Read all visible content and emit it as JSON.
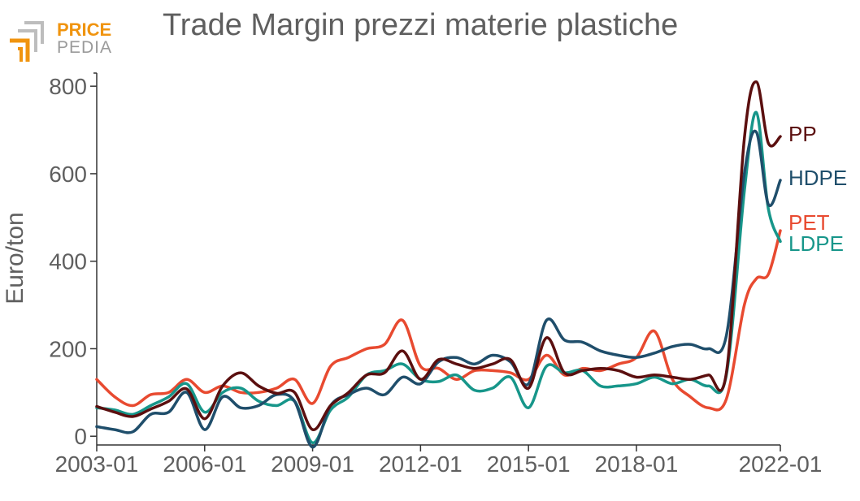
{
  "logo": {
    "text_top": "PRICE",
    "text_bottom": "PEDIA",
    "color_top": "#f0940f",
    "color_bottom": "#9a9a9a"
  },
  "chart_data": {
    "type": "line",
    "title": "Trade Margin prezzi materie plastiche",
    "xlabel": "",
    "ylabel": "Euro/ton",
    "xlim": [
      "2003-01",
      "2022-01"
    ],
    "ylim": [
      -20,
      830
    ],
    "x_ticks": [
      "2003-01",
      "2006-01",
      "2009-01",
      "2012-01",
      "2015-01",
      "2018-01",
      "2022-01"
    ],
    "y_ticks": [
      0,
      200,
      400,
      600,
      800
    ],
    "grid": false,
    "legend": "labels at line ends (right)",
    "series": [
      {
        "name": "PP",
        "color": "#5b0f0f",
        "points": [
          [
            "2003-01",
            68
          ],
          [
            "2003-07",
            55
          ],
          [
            "2004-01",
            45
          ],
          [
            "2004-07",
            62
          ],
          [
            "2005-01",
            80
          ],
          [
            "2005-07",
            108
          ],
          [
            "2006-01",
            40
          ],
          [
            "2006-07",
            115
          ],
          [
            "2007-01",
            145
          ],
          [
            "2007-07",
            115
          ],
          [
            "2008-01",
            98
          ],
          [
            "2008-07",
            100
          ],
          [
            "2009-01",
            15
          ],
          [
            "2009-07",
            70
          ],
          [
            "2010-01",
            100
          ],
          [
            "2010-07",
            140
          ],
          [
            "2011-01",
            145
          ],
          [
            "2011-07",
            195
          ],
          [
            "2012-01",
            130
          ],
          [
            "2012-07",
            175
          ],
          [
            "2013-01",
            165
          ],
          [
            "2013-07",
            155
          ],
          [
            "2014-01",
            165
          ],
          [
            "2014-07",
            175
          ],
          [
            "2015-01",
            110
          ],
          [
            "2015-07",
            225
          ],
          [
            "2016-01",
            145
          ],
          [
            "2016-07",
            150
          ],
          [
            "2017-01",
            155
          ],
          [
            "2017-07",
            150
          ],
          [
            "2018-01",
            135
          ],
          [
            "2018-07",
            140
          ],
          [
            "2019-01",
            135
          ],
          [
            "2019-07",
            130
          ],
          [
            "2020-01",
            140
          ],
          [
            "2020-07",
            145
          ],
          [
            "2021-01",
            680
          ],
          [
            "2021-05",
            810
          ],
          [
            "2021-09",
            670
          ],
          [
            "2022-01",
            685
          ]
        ]
      },
      {
        "name": "HDPE",
        "color": "#1f4e6b",
        "points": [
          [
            "2003-01",
            22
          ],
          [
            "2003-07",
            15
          ],
          [
            "2004-01",
            10
          ],
          [
            "2004-07",
            50
          ],
          [
            "2005-01",
            55
          ],
          [
            "2005-07",
            100
          ],
          [
            "2006-01",
            15
          ],
          [
            "2006-07",
            90
          ],
          [
            "2007-01",
            65
          ],
          [
            "2007-07",
            70
          ],
          [
            "2008-01",
            95
          ],
          [
            "2008-07",
            80
          ],
          [
            "2009-01",
            -25
          ],
          [
            "2009-07",
            70
          ],
          [
            "2010-01",
            95
          ],
          [
            "2010-07",
            110
          ],
          [
            "2011-01",
            95
          ],
          [
            "2011-07",
            135
          ],
          [
            "2012-01",
            120
          ],
          [
            "2012-07",
            170
          ],
          [
            "2013-01",
            180
          ],
          [
            "2013-07",
            165
          ],
          [
            "2014-01",
            185
          ],
          [
            "2014-07",
            170
          ],
          [
            "2015-01",
            120
          ],
          [
            "2015-07",
            265
          ],
          [
            "2016-01",
            220
          ],
          [
            "2016-07",
            215
          ],
          [
            "2017-01",
            195
          ],
          [
            "2017-07",
            185
          ],
          [
            "2018-01",
            180
          ],
          [
            "2018-07",
            190
          ],
          [
            "2019-01",
            205
          ],
          [
            "2019-07",
            210
          ],
          [
            "2020-01",
            200
          ],
          [
            "2020-07",
            230
          ],
          [
            "2021-01",
            600
          ],
          [
            "2021-05",
            695
          ],
          [
            "2021-09",
            530
          ],
          [
            "2022-01",
            585
          ]
        ]
      },
      {
        "name": "PET",
        "color": "#e84a30",
        "points": [
          [
            "2003-01",
            130
          ],
          [
            "2003-07",
            90
          ],
          [
            "2004-01",
            70
          ],
          [
            "2004-07",
            95
          ],
          [
            "2005-01",
            100
          ],
          [
            "2005-07",
            130
          ],
          [
            "2006-01",
            100
          ],
          [
            "2006-07",
            115
          ],
          [
            "2007-01",
            100
          ],
          [
            "2007-07",
            100
          ],
          [
            "2008-01",
            110
          ],
          [
            "2008-07",
            130
          ],
          [
            "2009-01",
            75
          ],
          [
            "2009-07",
            160
          ],
          [
            "2010-01",
            180
          ],
          [
            "2010-07",
            200
          ],
          [
            "2011-01",
            210
          ],
          [
            "2011-07",
            265
          ],
          [
            "2012-01",
            160
          ],
          [
            "2012-07",
            155
          ],
          [
            "2013-01",
            130
          ],
          [
            "2013-07",
            150
          ],
          [
            "2014-01",
            150
          ],
          [
            "2014-07",
            145
          ],
          [
            "2015-01",
            130
          ],
          [
            "2015-07",
            185
          ],
          [
            "2016-01",
            140
          ],
          [
            "2016-07",
            155
          ],
          [
            "2017-01",
            150
          ],
          [
            "2017-07",
            165
          ],
          [
            "2018-01",
            180
          ],
          [
            "2018-07",
            240
          ],
          [
            "2019-01",
            130
          ],
          [
            "2019-07",
            90
          ],
          [
            "2020-01",
            65
          ],
          [
            "2020-07",
            85
          ],
          [
            "2021-01",
            300
          ],
          [
            "2021-05",
            360
          ],
          [
            "2021-09",
            370
          ],
          [
            "2022-01",
            470
          ]
        ]
      },
      {
        "name": "LDPE",
        "color": "#17968a",
        "points": [
          [
            "2003-01",
            65
          ],
          [
            "2003-07",
            60
          ],
          [
            "2004-01",
            50
          ],
          [
            "2004-07",
            70
          ],
          [
            "2005-01",
            90
          ],
          [
            "2005-07",
            120
          ],
          [
            "2006-01",
            55
          ],
          [
            "2006-07",
            100
          ],
          [
            "2007-01",
            110
          ],
          [
            "2007-07",
            80
          ],
          [
            "2008-01",
            70
          ],
          [
            "2008-07",
            80
          ],
          [
            "2009-01",
            -15
          ],
          [
            "2009-07",
            60
          ],
          [
            "2010-01",
            90
          ],
          [
            "2010-07",
            140
          ],
          [
            "2011-01",
            150
          ],
          [
            "2011-07",
            165
          ],
          [
            "2012-01",
            130
          ],
          [
            "2012-07",
            125
          ],
          [
            "2013-01",
            140
          ],
          [
            "2013-07",
            105
          ],
          [
            "2014-01",
            110
          ],
          [
            "2014-07",
            135
          ],
          [
            "2015-01",
            65
          ],
          [
            "2015-07",
            160
          ],
          [
            "2016-01",
            145
          ],
          [
            "2016-07",
            150
          ],
          [
            "2017-01",
            115
          ],
          [
            "2017-07",
            115
          ],
          [
            "2018-01",
            120
          ],
          [
            "2018-07",
            135
          ],
          [
            "2019-01",
            120
          ],
          [
            "2019-07",
            130
          ],
          [
            "2020-01",
            115
          ],
          [
            "2020-07",
            140
          ],
          [
            "2021-01",
            560
          ],
          [
            "2021-05",
            740
          ],
          [
            "2021-09",
            520
          ],
          [
            "2022-01",
            445
          ]
        ]
      }
    ]
  }
}
